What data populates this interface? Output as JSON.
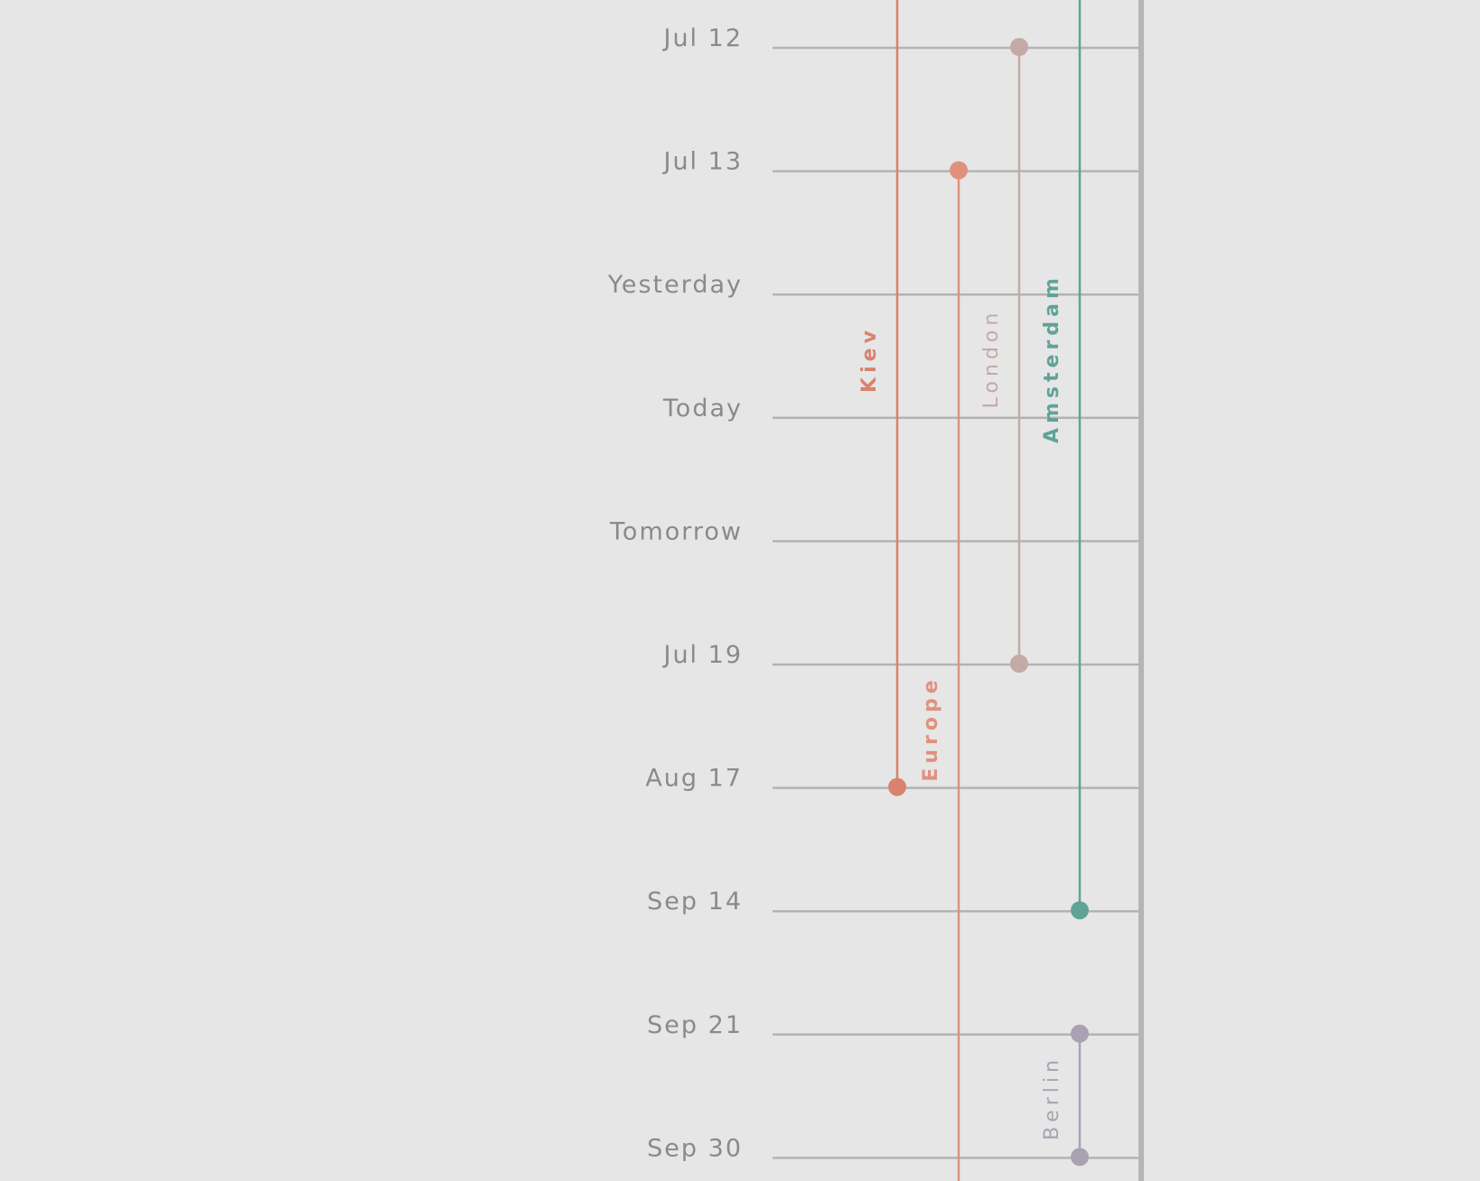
{
  "timeline": {
    "rows": [
      {
        "label": "Jul 12"
      },
      {
        "label": "Jul 13"
      },
      {
        "label": "Yesterday"
      },
      {
        "label": "Today"
      },
      {
        "label": "Tomorrow"
      },
      {
        "label": "Jul 19"
      },
      {
        "label": "Aug 17"
      },
      {
        "label": "Sep 14"
      },
      {
        "label": "Sep 21"
      },
      {
        "label": "Sep 30"
      }
    ],
    "trips": [
      {
        "name": "Kiev",
        "color": "#d9826e",
        "lane": 0,
        "start_row": null,
        "end_row": 6,
        "label_weight": "bold"
      },
      {
        "name": "Europe",
        "color": "#e0917e",
        "lane": 1,
        "start_row": 1,
        "end_row": null,
        "label_weight": "bold"
      },
      {
        "name": "London",
        "color": "#c4aaa6",
        "lane": 2,
        "start_row": 0,
        "end_row": 5,
        "label_weight": "normal"
      },
      {
        "name": "Amsterdam",
        "color": "#5fa398",
        "lane": 3,
        "start_row": null,
        "end_row": 7,
        "label_weight": "bold"
      },
      {
        "name": "Berlin",
        "color": "#aaa2b2",
        "lane": 3,
        "start_row": 8,
        "end_row": 9,
        "label_weight": "normal"
      }
    ],
    "colors": {
      "background": "#e6e6e6",
      "gridline": "#b3b3b3",
      "date_text": "#8a8a8a",
      "right_border": "#b5b5b5"
    }
  }
}
